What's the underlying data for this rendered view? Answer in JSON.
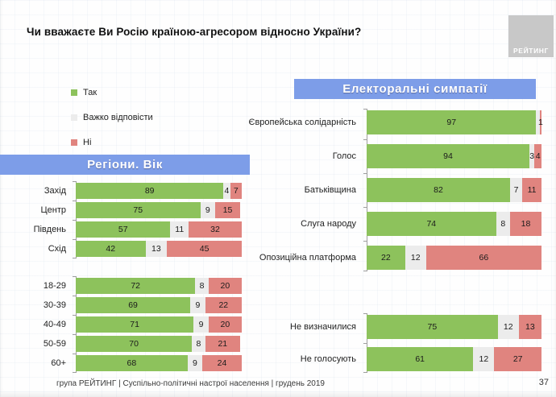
{
  "title": "Чи вважаєте Ви Росію країною-агресором відносно України?",
  "logo_text": "РЕЙТИНГ",
  "page_number": "37",
  "footer": "група РЕЙТИНГ | Суспільно-політичні настрої населення | грудень 2019",
  "banners": {
    "left": "Регіони. Вік",
    "right": "Електоральні симпатії"
  },
  "legend": [
    {
      "name": "yes",
      "label": "Так",
      "color": "#8dc25c"
    },
    {
      "name": "dk",
      "label": "Важко відповісти",
      "color": "#ececec"
    },
    {
      "name": "no",
      "label": "Ні",
      "color": "#e0847f"
    }
  ],
  "chart_data": [
    {
      "id": "regions",
      "type": "bar",
      "orientation": "horizontal",
      "stacked": true,
      "axis_max": 100,
      "group": "Регіони",
      "categories": [
        "Захід",
        "Центр",
        "Південь",
        "Схід"
      ],
      "series": [
        {
          "name": "Так",
          "values": [
            89,
            75,
            57,
            42
          ]
        },
        {
          "name": "Важко відповісти",
          "values": [
            4,
            9,
            11,
            13
          ]
        },
        {
          "name": "Ні",
          "values": [
            7,
            15,
            32,
            45
          ]
        }
      ]
    },
    {
      "id": "age",
      "type": "bar",
      "orientation": "horizontal",
      "stacked": true,
      "axis_max": 100,
      "group": "Вік",
      "categories": [
        "18-29",
        "30-39",
        "40-49",
        "50-59",
        "60+"
      ],
      "series": [
        {
          "name": "Так",
          "values": [
            72,
            69,
            71,
            70,
            68
          ]
        },
        {
          "name": "Важко відповісти",
          "values": [
            8,
            9,
            9,
            8,
            9
          ]
        },
        {
          "name": "Ні",
          "values": [
            20,
            22,
            20,
            21,
            24
          ]
        }
      ]
    },
    {
      "id": "parties",
      "type": "bar",
      "orientation": "horizontal",
      "stacked": true,
      "axis_max": 100,
      "group": "Електоральні симпатії",
      "categories": [
        "Європейська солідарність",
        "Голос",
        "Батьківщина",
        "Слуга народу",
        "Опозиційна платформа"
      ],
      "series": [
        {
          "name": "Так",
          "values": [
            97,
            94,
            82,
            74,
            22
          ]
        },
        {
          "name": "Важко відповісти",
          "values": [
            2,
            3,
            7,
            8,
            12
          ]
        },
        {
          "name": "Ні",
          "values": [
            1,
            4,
            11,
            18,
            66
          ]
        }
      ],
      "hidden_labels": [
        [
          0,
          1
        ]
      ]
    },
    {
      "id": "undecided",
      "type": "bar",
      "orientation": "horizontal",
      "stacked": true,
      "axis_max": 100,
      "group": "Електоральні симпатії (інші)",
      "categories": [
        "Не визначилися",
        "Не голосують"
      ],
      "series": [
        {
          "name": "Так",
          "values": [
            75,
            61
          ]
        },
        {
          "name": "Важко відповісти",
          "values": [
            12,
            12
          ]
        },
        {
          "name": "Ні",
          "values": [
            13,
            27
          ]
        }
      ]
    }
  ]
}
